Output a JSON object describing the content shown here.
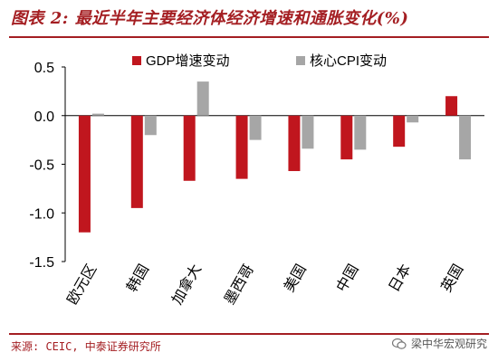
{
  "header": {
    "title": "图表 2: 最近半年主要经济体经济增速和通胀变化(%)"
  },
  "footer": {
    "source": "来源: CEIC, 中泰证券研究所",
    "watermark": "梁中华宏观研究",
    "watermark_icon": "wechat-icon"
  },
  "colors": {
    "accent": "#a41e22",
    "gdp": "#c0161e",
    "cpi": "#a6a6a6"
  },
  "chart_data": {
    "type": "bar",
    "categories": [
      "欧元区",
      "韩国",
      "加拿大",
      "墨西哥",
      "美国",
      "中国",
      "日本",
      "英国"
    ],
    "series": [
      {
        "name": "GDP增速变动",
        "values": [
          -1.2,
          -0.95,
          -0.67,
          -0.65,
          -0.57,
          -0.45,
          -0.32,
          0.2
        ]
      },
      {
        "name": "核心CPI变动",
        "values": [
          0.02,
          -0.2,
          0.35,
          -0.25,
          -0.34,
          -0.35,
          -0.07,
          -0.45
        ]
      }
    ],
    "ylim": [
      -1.5,
      0.5
    ],
    "yticks": [
      0.5,
      0.0,
      -0.5,
      -1.0,
      -1.5
    ],
    "ytick_labels": [
      "0.5",
      "0.0",
      "-0.5",
      "-1.0",
      "-1.5"
    ],
    "legend_position": "top-center",
    "grid": false,
    "xlabel": "",
    "ylabel": ""
  }
}
